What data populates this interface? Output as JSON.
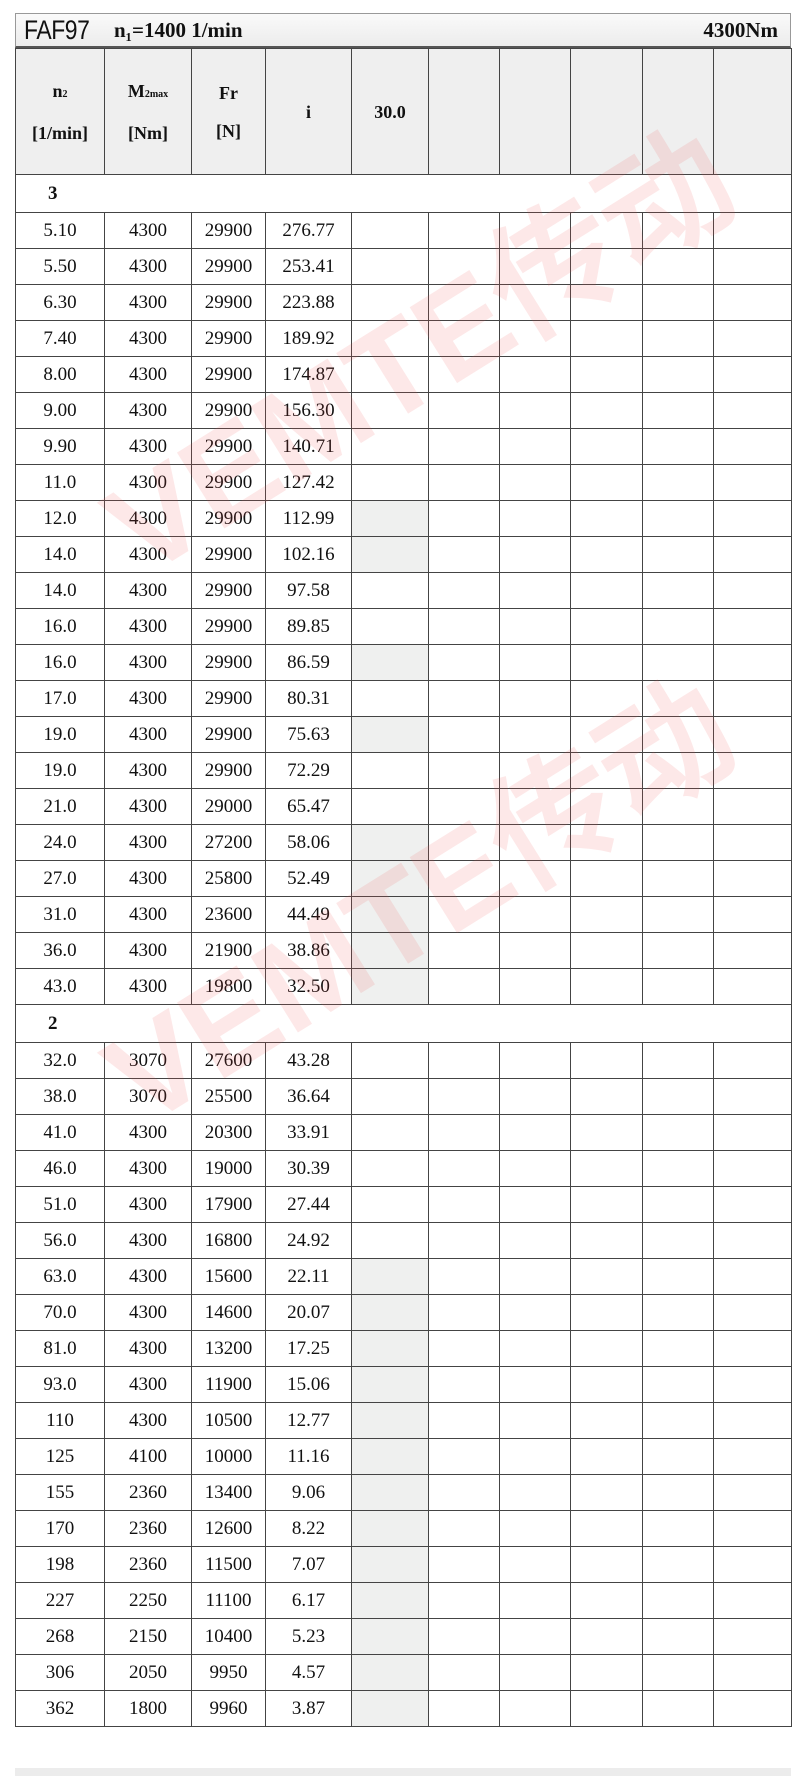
{
  "header": {
    "model": "FAF97",
    "input_speed": "n₁=1400 1/min",
    "torque": "4300Nm"
  },
  "columns": {
    "n2": {
      "symbol": "n",
      "sub": "2",
      "unit": "[1/min]"
    },
    "m2max": {
      "symbol": "M",
      "sub": "2max",
      "unit": "[Nm]"
    },
    "fr": {
      "symbol": "Fr",
      "unit": "[N]"
    },
    "i": {
      "symbol": "i"
    },
    "extra": [
      "30.0",
      "",
      "",
      "",
      "",
      ""
    ]
  },
  "watermark": "VEMTE传动",
  "shade_color": "#eff0ef",
  "groups": [
    {
      "stages": "3",
      "rows": [
        {
          "n2": "5.10",
          "m2": "4300",
          "fr": "29900",
          "i": "276.77",
          "shaded": false
        },
        {
          "n2": "5.50",
          "m2": "4300",
          "fr": "29900",
          "i": "253.41",
          "shaded": false
        },
        {
          "n2": "6.30",
          "m2": "4300",
          "fr": "29900",
          "i": "223.88",
          "shaded": false
        },
        {
          "n2": "7.40",
          "m2": "4300",
          "fr": "29900",
          "i": "189.92",
          "shaded": false
        },
        {
          "n2": "8.00",
          "m2": "4300",
          "fr": "29900",
          "i": "174.87",
          "shaded": false
        },
        {
          "n2": "9.00",
          "m2": "4300",
          "fr": "29900",
          "i": "156.30",
          "shaded": false
        },
        {
          "n2": "9.90",
          "m2": "4300",
          "fr": "29900",
          "i": "140.71",
          "shaded": false
        },
        {
          "n2": "11.0",
          "m2": "4300",
          "fr": "29900",
          "i": "127.42",
          "shaded": false
        },
        {
          "n2": "12.0",
          "m2": "4300",
          "fr": "29900",
          "i": "112.99",
          "shaded": true
        },
        {
          "n2": "14.0",
          "m2": "4300",
          "fr": "29900",
          "i": "102.16",
          "shaded": true
        },
        {
          "n2": "14.0",
          "m2": "4300",
          "fr": "29900",
          "i": "97.58",
          "shaded": false
        },
        {
          "n2": "16.0",
          "m2": "4300",
          "fr": "29900",
          "i": "89.85",
          "shaded": false
        },
        {
          "n2": "16.0",
          "m2": "4300",
          "fr": "29900",
          "i": "86.59",
          "shaded": true
        },
        {
          "n2": "17.0",
          "m2": "4300",
          "fr": "29900",
          "i": "80.31",
          "shaded": false
        },
        {
          "n2": "19.0",
          "m2": "4300",
          "fr": "29900",
          "i": "75.63",
          "shaded": true
        },
        {
          "n2": "19.0",
          "m2": "4300",
          "fr": "29900",
          "i": "72.29",
          "shaded": false
        },
        {
          "n2": "21.0",
          "m2": "4300",
          "fr": "29000",
          "i": "65.47",
          "shaded": false
        },
        {
          "n2": "24.0",
          "m2": "4300",
          "fr": "27200",
          "i": "58.06",
          "shaded": true
        },
        {
          "n2": "27.0",
          "m2": "4300",
          "fr": "25800",
          "i": "52.49",
          "shaded": true
        },
        {
          "n2": "31.0",
          "m2": "4300",
          "fr": "23600",
          "i": "44.49",
          "shaded": true
        },
        {
          "n2": "36.0",
          "m2": "4300",
          "fr": "21900",
          "i": "38.86",
          "shaded": true
        },
        {
          "n2": "43.0",
          "m2": "4300",
          "fr": "19800",
          "i": "32.50",
          "shaded": true
        }
      ]
    },
    {
      "stages": "2",
      "rows": [
        {
          "n2": "32.0",
          "m2": "3070",
          "fr": "27600",
          "i": "43.28",
          "shaded": false
        },
        {
          "n2": "38.0",
          "m2": "3070",
          "fr": "25500",
          "i": "36.64",
          "shaded": false
        },
        {
          "n2": "41.0",
          "m2": "4300",
          "fr": "20300",
          "i": "33.91",
          "shaded": false
        },
        {
          "n2": "46.0",
          "m2": "4300",
          "fr": "19000",
          "i": "30.39",
          "shaded": false
        },
        {
          "n2": "51.0",
          "m2": "4300",
          "fr": "17900",
          "i": "27.44",
          "shaded": false
        },
        {
          "n2": "56.0",
          "m2": "4300",
          "fr": "16800",
          "i": "24.92",
          "shaded": false
        },
        {
          "n2": "63.0",
          "m2": "4300",
          "fr": "15600",
          "i": "22.11",
          "shaded": true
        },
        {
          "n2": "70.0",
          "m2": "4300",
          "fr": "14600",
          "i": "20.07",
          "shaded": true
        },
        {
          "n2": "81.0",
          "m2": "4300",
          "fr": "13200",
          "i": "17.25",
          "shaded": true
        },
        {
          "n2": "93.0",
          "m2": "4300",
          "fr": "11900",
          "i": "15.06",
          "shaded": true
        },
        {
          "n2": "110",
          "m2": "4300",
          "fr": "10500",
          "i": "12.77",
          "shaded": true
        },
        {
          "n2": "125",
          "m2": "4100",
          "fr": "10000",
          "i": "11.16",
          "shaded": true
        },
        {
          "n2": "155",
          "m2": "2360",
          "fr": "13400",
          "i": "9.06",
          "shaded": true
        },
        {
          "n2": "170",
          "m2": "2360",
          "fr": "12600",
          "i": "8.22",
          "shaded": true
        },
        {
          "n2": "198",
          "m2": "2360",
          "fr": "11500",
          "i": "7.07",
          "shaded": true
        },
        {
          "n2": "227",
          "m2": "2250",
          "fr": "11100",
          "i": "6.17",
          "shaded": true
        },
        {
          "n2": "268",
          "m2": "2150",
          "fr": "10400",
          "i": "5.23",
          "shaded": true
        },
        {
          "n2": "306",
          "m2": "2050",
          "fr": "9950",
          "i": "4.57",
          "shaded": true
        },
        {
          "n2": "362",
          "m2": "1800",
          "fr": "9960",
          "i": "3.87",
          "shaded": true
        }
      ]
    }
  ]
}
